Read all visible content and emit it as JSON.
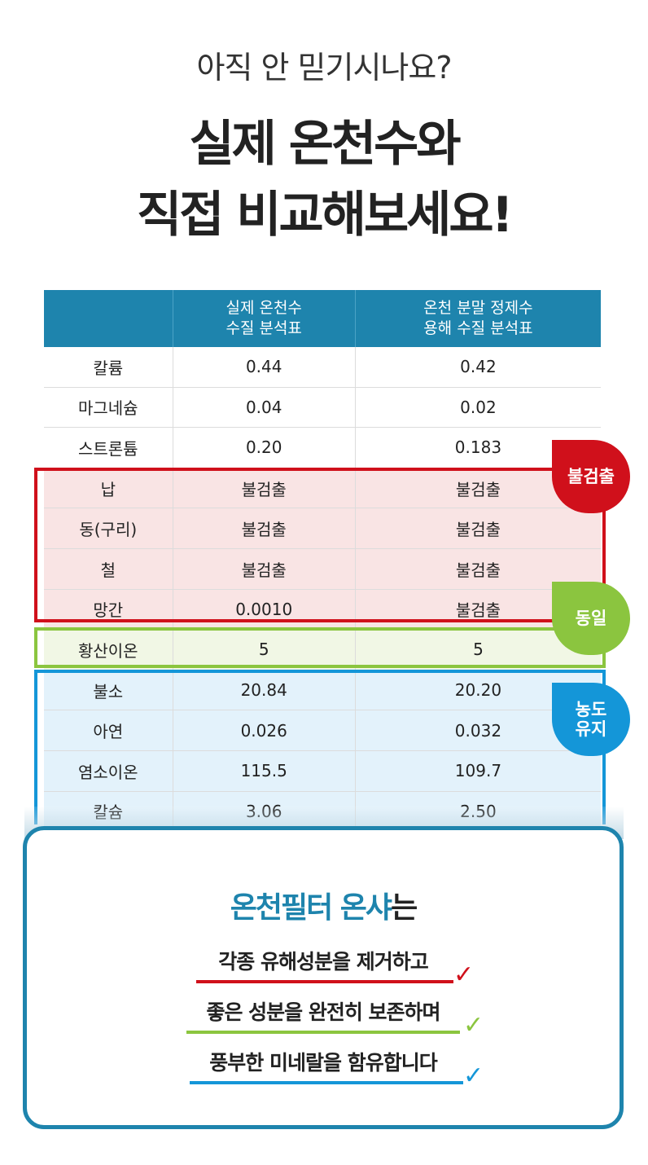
{
  "header": {
    "subtitle": "아직 안 믿기시나요?",
    "headline_line1": "실제 온천수와",
    "headline_line2": "직접 비교해보세요!"
  },
  "table": {
    "col2_header": [
      "실제 온천수",
      "수질 분석표"
    ],
    "col3_header": [
      "온천 분말 정제수",
      "용해 수질 분석표"
    ],
    "rows": [
      {
        "name": "칼륨",
        "real": "0.44",
        "powder": "0.42",
        "group": "none"
      },
      {
        "name": "마그네슘",
        "real": "0.04",
        "powder": "0.02",
        "group": "none"
      },
      {
        "name": "스트론튬",
        "real": "0.20",
        "powder": "0.183",
        "group": "none"
      },
      {
        "name": "납",
        "real": "불검출",
        "powder": "불검출",
        "group": "red"
      },
      {
        "name": "동(구리)",
        "real": "불검출",
        "powder": "불검출",
        "group": "red"
      },
      {
        "name": "철",
        "real": "불검출",
        "powder": "불검출",
        "group": "red"
      },
      {
        "name": "망간",
        "real": "0.0010",
        "powder": "불검출",
        "group": "red"
      },
      {
        "name": "황산이온",
        "real": "5",
        "powder": "5",
        "group": "green"
      },
      {
        "name": "불소",
        "real": "20.84",
        "powder": "20.20",
        "group": "blue"
      },
      {
        "name": "아연",
        "real": "0.026",
        "powder": "0.032",
        "group": "blue"
      },
      {
        "name": "염소이온",
        "real": "115.5",
        "powder": "109.7",
        "group": "blue"
      },
      {
        "name": "칼슘",
        "real": "3.06",
        "powder": "2.50",
        "group": "blue"
      }
    ]
  },
  "tags": {
    "red": "불검출",
    "green": "동일",
    "blue_line1": "농도",
    "blue_line2": "유지"
  },
  "colors": {
    "accent": "#1e84ad",
    "red": "#d0101b",
    "green": "#8bc53f",
    "blue": "#1496d8"
  },
  "card": {
    "title_brand": "온천필터 온샤",
    "title_suffix": "는",
    "lines": [
      "각종 유해성분을 제거하고",
      "좋은 성분을 완전히 보존하며",
      "풍부한 미네랄을 함유합니다"
    ],
    "check": "✓"
  }
}
